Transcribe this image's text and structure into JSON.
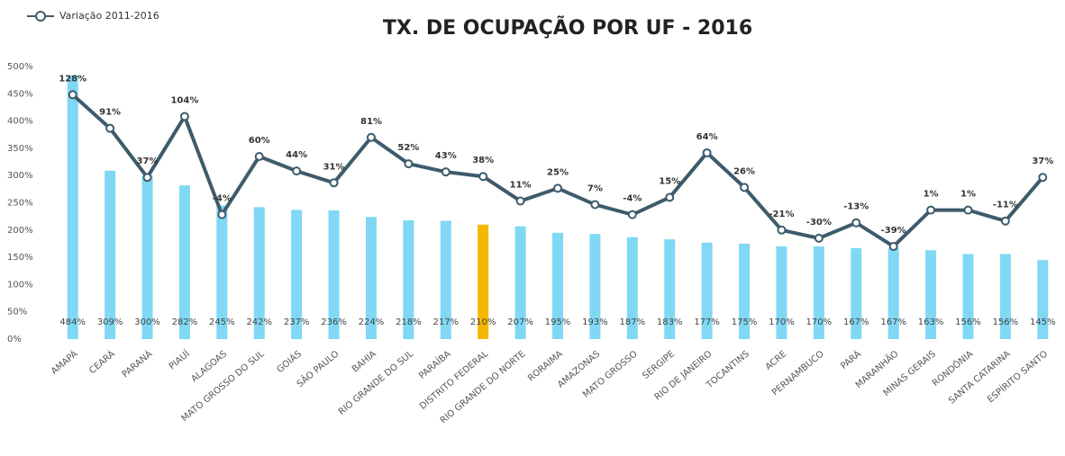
{
  "chart_data": {
    "type": "bar_line",
    "title": "TX. DE OCUPAÇÃO POR UF - 2016",
    "categories": [
      "AMAPÁ",
      "CEARÁ",
      "PARANÁ",
      "PIAUÍ",
      "ALAGOAS",
      "MATO GROSSO DO SUL",
      "GOIÁS",
      "SÃO PAULO",
      "BAHIA",
      "RIO GRANDE DO SUL",
      "PARAÍBA",
      "DISTRITO FEDERAL",
      "RIO GRANDE DO NORTE",
      "RORAIMA",
      "AMAZONAS",
      "MATO GROSSO",
      "SERGIPE",
      "RIO DE JANEIRO",
      "TOCANTINS",
      "ACRE",
      "PERNAMBUCO",
      "PARÁ",
      "MARANHÃO",
      "MINAS GERAIS",
      "RONDÔNIA",
      "SANTA CATARINA",
      "ESPÍRITO SANTO"
    ],
    "bars": {
      "values": [
        484,
        309,
        300,
        282,
        245,
        242,
        237,
        236,
        224,
        218,
        217,
        210,
        207,
        195,
        193,
        187,
        183,
        177,
        175,
        170,
        170,
        167,
        167,
        163,
        156,
        156,
        145
      ],
      "value_labels": [
        "484%",
        "309%",
        "300%",
        "282%",
        "245%",
        "242%",
        "237%",
        "236%",
        "224%",
        "218%",
        "217%",
        "210%",
        "207%",
        "195%",
        "193%",
        "187%",
        "183%",
        "177%",
        "175%",
        "170%",
        "170%",
        "167%",
        "167%",
        "163%",
        "156%",
        "156%",
        "145%"
      ],
      "colors": [
        "#80d8f4",
        "#80d8f4",
        "#80d8f4",
        "#80d8f4",
        "#80d8f4",
        "#80d8f4",
        "#80d8f4",
        "#80d8f4",
        "#80d8f4",
        "#80d8f4",
        "#80d8f4",
        "#f5b800",
        "#80d8f4",
        "#80d8f4",
        "#80d8f4",
        "#80d8f4",
        "#80d8f4",
        "#80d8f4",
        "#80d8f4",
        "#80d8f4",
        "#80d8f4",
        "#80d8f4",
        "#80d8f4",
        "#80d8f4",
        "#80d8f4",
        "#80d8f4",
        "#80d8f4"
      ]
    },
    "series": [
      {
        "name": "Variação 2011-2016",
        "color": "#3e5b6b",
        "axis": "y2",
        "values": [
          128,
          91,
          37,
          104,
          -4,
          60,
          44,
          31,
          81,
          52,
          43,
          38,
          11,
          25,
          7,
          -4,
          15,
          64,
          26,
          -21,
          -30,
          -13,
          -39,
          1,
          1,
          -11,
          37
        ],
        "value_labels": [
          "128%",
          "91%",
          "37%",
          "104%",
          "-4%",
          "60%",
          "44%",
          "31%",
          "81%",
          "52%",
          "43%",
          "38%",
          "11%",
          "25%",
          "7%",
          "-4%",
          "15%",
          "64%",
          "26%",
          "-21%",
          "-30%",
          "-13%",
          "-39%",
          "1%",
          "1%",
          "-11%",
          "37%"
        ]
      }
    ],
    "ylim": [
      0,
      500
    ],
    "yticks": [
      {
        "value": 0,
        "label": "0%"
      },
      {
        "value": 50,
        "label": "50%"
      },
      {
        "value": 100,
        "label": "100%"
      },
      {
        "value": 150,
        "label": "150%"
      },
      {
        "value": 200,
        "label": "200%"
      },
      {
        "value": 250,
        "label": "250%"
      },
      {
        "value": 300,
        "label": "300%"
      },
      {
        "value": 350,
        "label": "350%"
      },
      {
        "value": 400,
        "label": "400%"
      },
      {
        "value": 450,
        "label": "450%"
      },
      {
        "value": 500,
        "label": "500%"
      }
    ],
    "y2lim": [
      -141,
      159
    ],
    "legend": "top-left"
  }
}
